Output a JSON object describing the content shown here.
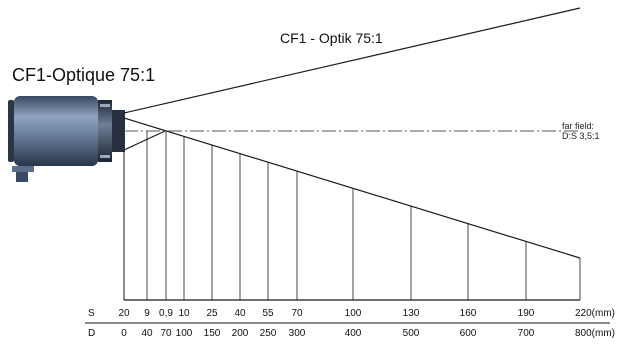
{
  "header": {
    "title_de": "CF1 - Optik 75:1",
    "title_fr": "CF1-Optique 75:1"
  },
  "annotation": {
    "line1": "far field:",
    "line2": "D:S 3,5:1"
  },
  "scale": {
    "s_label": "S",
    "d_label": "D",
    "s_values": [
      "20",
      "9",
      "0,9",
      "10",
      "25",
      "40",
      "55",
      "70",
      "100",
      "130",
      "160",
      "190",
      "220(mm)"
    ],
    "d_values": [
      "0",
      "40",
      "70",
      "100",
      "150",
      "200",
      "250",
      "300",
      "400",
      "500",
      "600",
      "700",
      "800(mm)"
    ]
  },
  "colors": {
    "line": "#1a1a1a",
    "dashdot": "#555555",
    "sensor_body": "#5c6f8a",
    "sensor_dark": "#2e3a4d"
  }
}
